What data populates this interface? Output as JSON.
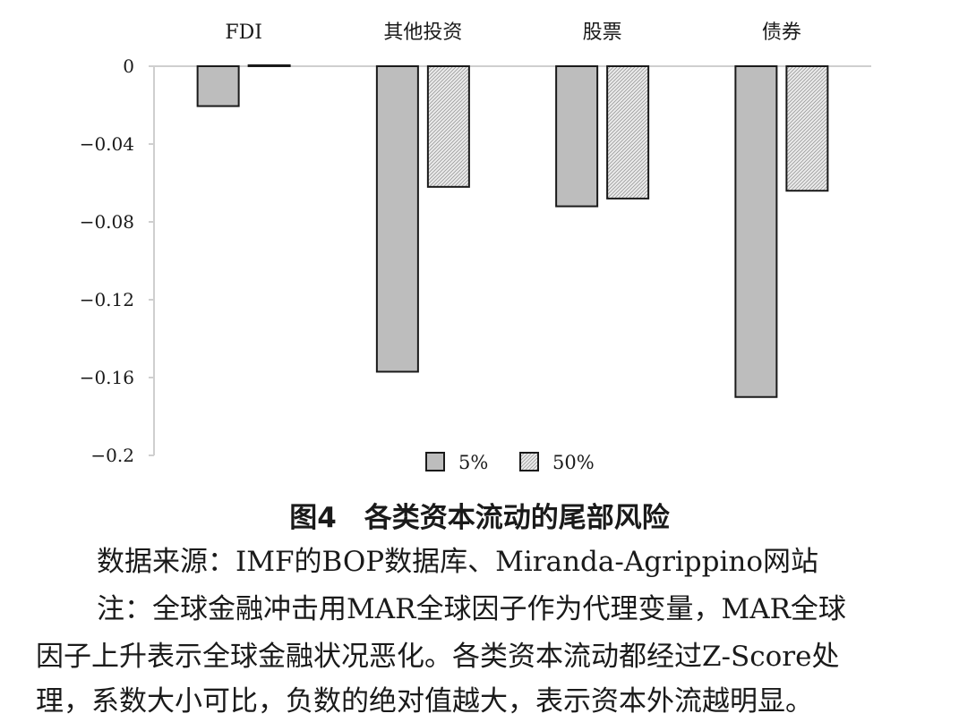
{
  "chart_data": {
    "type": "bar",
    "categories": [
      "FDI",
      "其他投资",
      "股票",
      "债券"
    ],
    "series": [
      {
        "name": "5%",
        "values": [
          -0.0205,
          -0.157,
          -0.072,
          -0.17
        ],
        "color": "#bdbdbd",
        "pattern": "solid"
      },
      {
        "name": "50%",
        "values": [
          0.0005,
          -0.062,
          -0.068,
          -0.064
        ],
        "color": "#e6e6e6",
        "pattern": "hatched"
      }
    ],
    "ylim": [
      -0.2,
      0
    ],
    "yticks": [
      0,
      -0.04,
      -0.08,
      -0.12,
      -0.16,
      -0.2
    ],
    "ytick_labels": [
      "0",
      "−0.04",
      "−0.08",
      "−0.12",
      "−0.16",
      "−0.2"
    ],
    "category_labels_position": "top",
    "legend_position": "bottom",
    "grid": false
  },
  "caption": {
    "title": "图4　各类资本流动的尾部风险",
    "source": "数据来源：IMF的BOP数据库、Miranda-Agrippino网站",
    "note_lines": [
      "注：全球金融冲击用MAR全球因子作为代理变量，MAR全球",
      "因子上升表示全球金融状况恶化。各类资本流动都经过Z-Score处",
      "理，系数大小可比，负数的绝对值越大，表示资本外流越明显。"
    ]
  }
}
